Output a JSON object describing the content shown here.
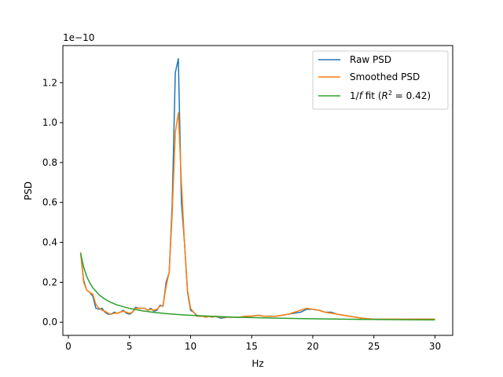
{
  "chart_data": {
    "type": "line",
    "title": "",
    "xlabel": "Hz",
    "ylabel": "PSD",
    "offset_text": "1e−10",
    "y_multiplier": 1e-10,
    "xlim": [
      -0.45,
      31.45
    ],
    "ylim": [
      -0.066,
      1.386
    ],
    "xticks": [
      0,
      5,
      10,
      15,
      20,
      25,
      30
    ],
    "xtick_labels": [
      "0",
      "5",
      "10",
      "15",
      "20",
      "25",
      "30"
    ],
    "yticks": [
      0.0,
      0.2,
      0.4,
      0.6,
      0.8,
      1.0,
      1.2
    ],
    "ytick_labels": [
      "0.0",
      "0.2",
      "0.4",
      "0.6",
      "0.8",
      "1.0",
      "1.2"
    ],
    "grid": false,
    "legend_placement": "upper right",
    "legend": {
      "raw_label": "Raw PSD",
      "smoothed_label": "Smoothed PSD",
      "fit_label_prefix": "1/",
      "fit_label_f": "f",
      "fit_label_middle": " fit (",
      "fit_label_R": "R",
      "fit_label_sup": "2",
      "fit_label_suffix": " = 0.42)"
    },
    "series": [
      {
        "name": "Raw PSD",
        "color": "#1f77b4",
        "x": [
          1,
          1.25,
          1.5,
          1.75,
          2,
          2.25,
          2.5,
          2.75,
          3,
          3.25,
          3.5,
          3.75,
          4,
          4.25,
          4.5,
          4.75,
          5,
          5.25,
          5.5,
          5.75,
          6,
          6.25,
          6.5,
          6.75,
          7,
          7.25,
          7.5,
          7.75,
          8,
          8.25,
          8.5,
          8.75,
          9,
          9.25,
          9.5,
          9.75,
          10,
          10.25,
          10.5,
          10.75,
          11,
          11.25,
          11.5,
          11.75,
          12,
          12.5,
          13,
          13.5,
          14,
          14.5,
          15,
          15.5,
          16,
          16.5,
          17,
          17.5,
          18,
          18.5,
          19,
          19.5,
          20,
          20.5,
          21,
          21.5,
          22,
          22.5,
          23,
          23.5,
          24,
          25,
          26,
          27,
          28,
          29,
          30
        ],
        "values": [
          0.35,
          0.21,
          0.16,
          0.15,
          0.13,
          0.07,
          0.065,
          0.07,
          0.05,
          0.04,
          0.04,
          0.05,
          0.045,
          0.05,
          0.06,
          0.045,
          0.04,
          0.05,
          0.075,
          0.07,
          0.07,
          0.07,
          0.06,
          0.07,
          0.055,
          0.06,
          0.085,
          0.08,
          0.2,
          0.25,
          0.6,
          1.25,
          1.32,
          0.6,
          0.4,
          0.15,
          0.06,
          0.05,
          0.035,
          0.03,
          0.03,
          0.025,
          0.03,
          0.025,
          0.03,
          0.02,
          0.025,
          0.025,
          0.025,
          0.03,
          0.03,
          0.035,
          0.03,
          0.03,
          0.03,
          0.035,
          0.04,
          0.045,
          0.05,
          0.065,
          0.065,
          0.06,
          0.05,
          0.05,
          0.04,
          0.035,
          0.03,
          0.025,
          0.02,
          0.015,
          0.015,
          0.015,
          0.015,
          0.015,
          0.015
        ]
      },
      {
        "name": "Smoothed PSD",
        "color": "#ff7f0e",
        "x": [
          1,
          1.25,
          1.5,
          1.75,
          2,
          2.25,
          2.5,
          2.75,
          3,
          3.25,
          3.5,
          3.75,
          4,
          4.25,
          4.5,
          4.75,
          5,
          5.25,
          5.5,
          5.75,
          6,
          6.25,
          6.5,
          6.75,
          7,
          7.25,
          7.5,
          7.75,
          8,
          8.25,
          8.5,
          8.75,
          9,
          9.25,
          9.5,
          9.75,
          10,
          10.25,
          10.5,
          10.75,
          11,
          11.25,
          11.5,
          11.75,
          12,
          12.5,
          13,
          13.5,
          14,
          14.5,
          15,
          15.5,
          16,
          16.5,
          17,
          17.5,
          18,
          18.5,
          19,
          19.5,
          20,
          20.5,
          21,
          21.5,
          22,
          22.5,
          23,
          23.5,
          24,
          25,
          26,
          27,
          28,
          29,
          30
        ],
        "values": [
          0.35,
          0.2,
          0.16,
          0.15,
          0.14,
          0.09,
          0.07,
          0.06,
          0.055,
          0.045,
          0.04,
          0.045,
          0.045,
          0.05,
          0.055,
          0.05,
          0.045,
          0.05,
          0.07,
          0.07,
          0.07,
          0.07,
          0.06,
          0.065,
          0.06,
          0.065,
          0.08,
          0.085,
          0.18,
          0.25,
          0.55,
          0.95,
          1.05,
          0.7,
          0.4,
          0.16,
          0.07,
          0.05,
          0.03,
          0.03,
          0.03,
          0.025,
          0.03,
          0.025,
          0.03,
          0.025,
          0.025,
          0.025,
          0.025,
          0.03,
          0.03,
          0.035,
          0.03,
          0.03,
          0.03,
          0.035,
          0.04,
          0.05,
          0.06,
          0.07,
          0.065,
          0.06,
          0.05,
          0.045,
          0.04,
          0.035,
          0.03,
          0.025,
          0.02,
          0.015,
          0.015,
          0.015,
          0.015,
          0.015,
          0.015
        ]
      },
      {
        "name": "1/f fit (R² = 0.42)",
        "color": "#2ca02c",
        "x": [
          1,
          1.25,
          1.5,
          1.75,
          2,
          2.5,
          3,
          3.5,
          4,
          5,
          6,
          7,
          8,
          9,
          10,
          12,
          14,
          16,
          18,
          20,
          22,
          24,
          26,
          28,
          30
        ],
        "values": [
          0.345,
          0.276,
          0.23,
          0.197,
          0.1725,
          0.138,
          0.115,
          0.0986,
          0.0863,
          0.069,
          0.0575,
          0.0493,
          0.0431,
          0.0383,
          0.0345,
          0.0288,
          0.0246,
          0.0216,
          0.0192,
          0.0173,
          0.0157,
          0.0144,
          0.0133,
          0.0123,
          0.0115
        ]
      }
    ]
  }
}
